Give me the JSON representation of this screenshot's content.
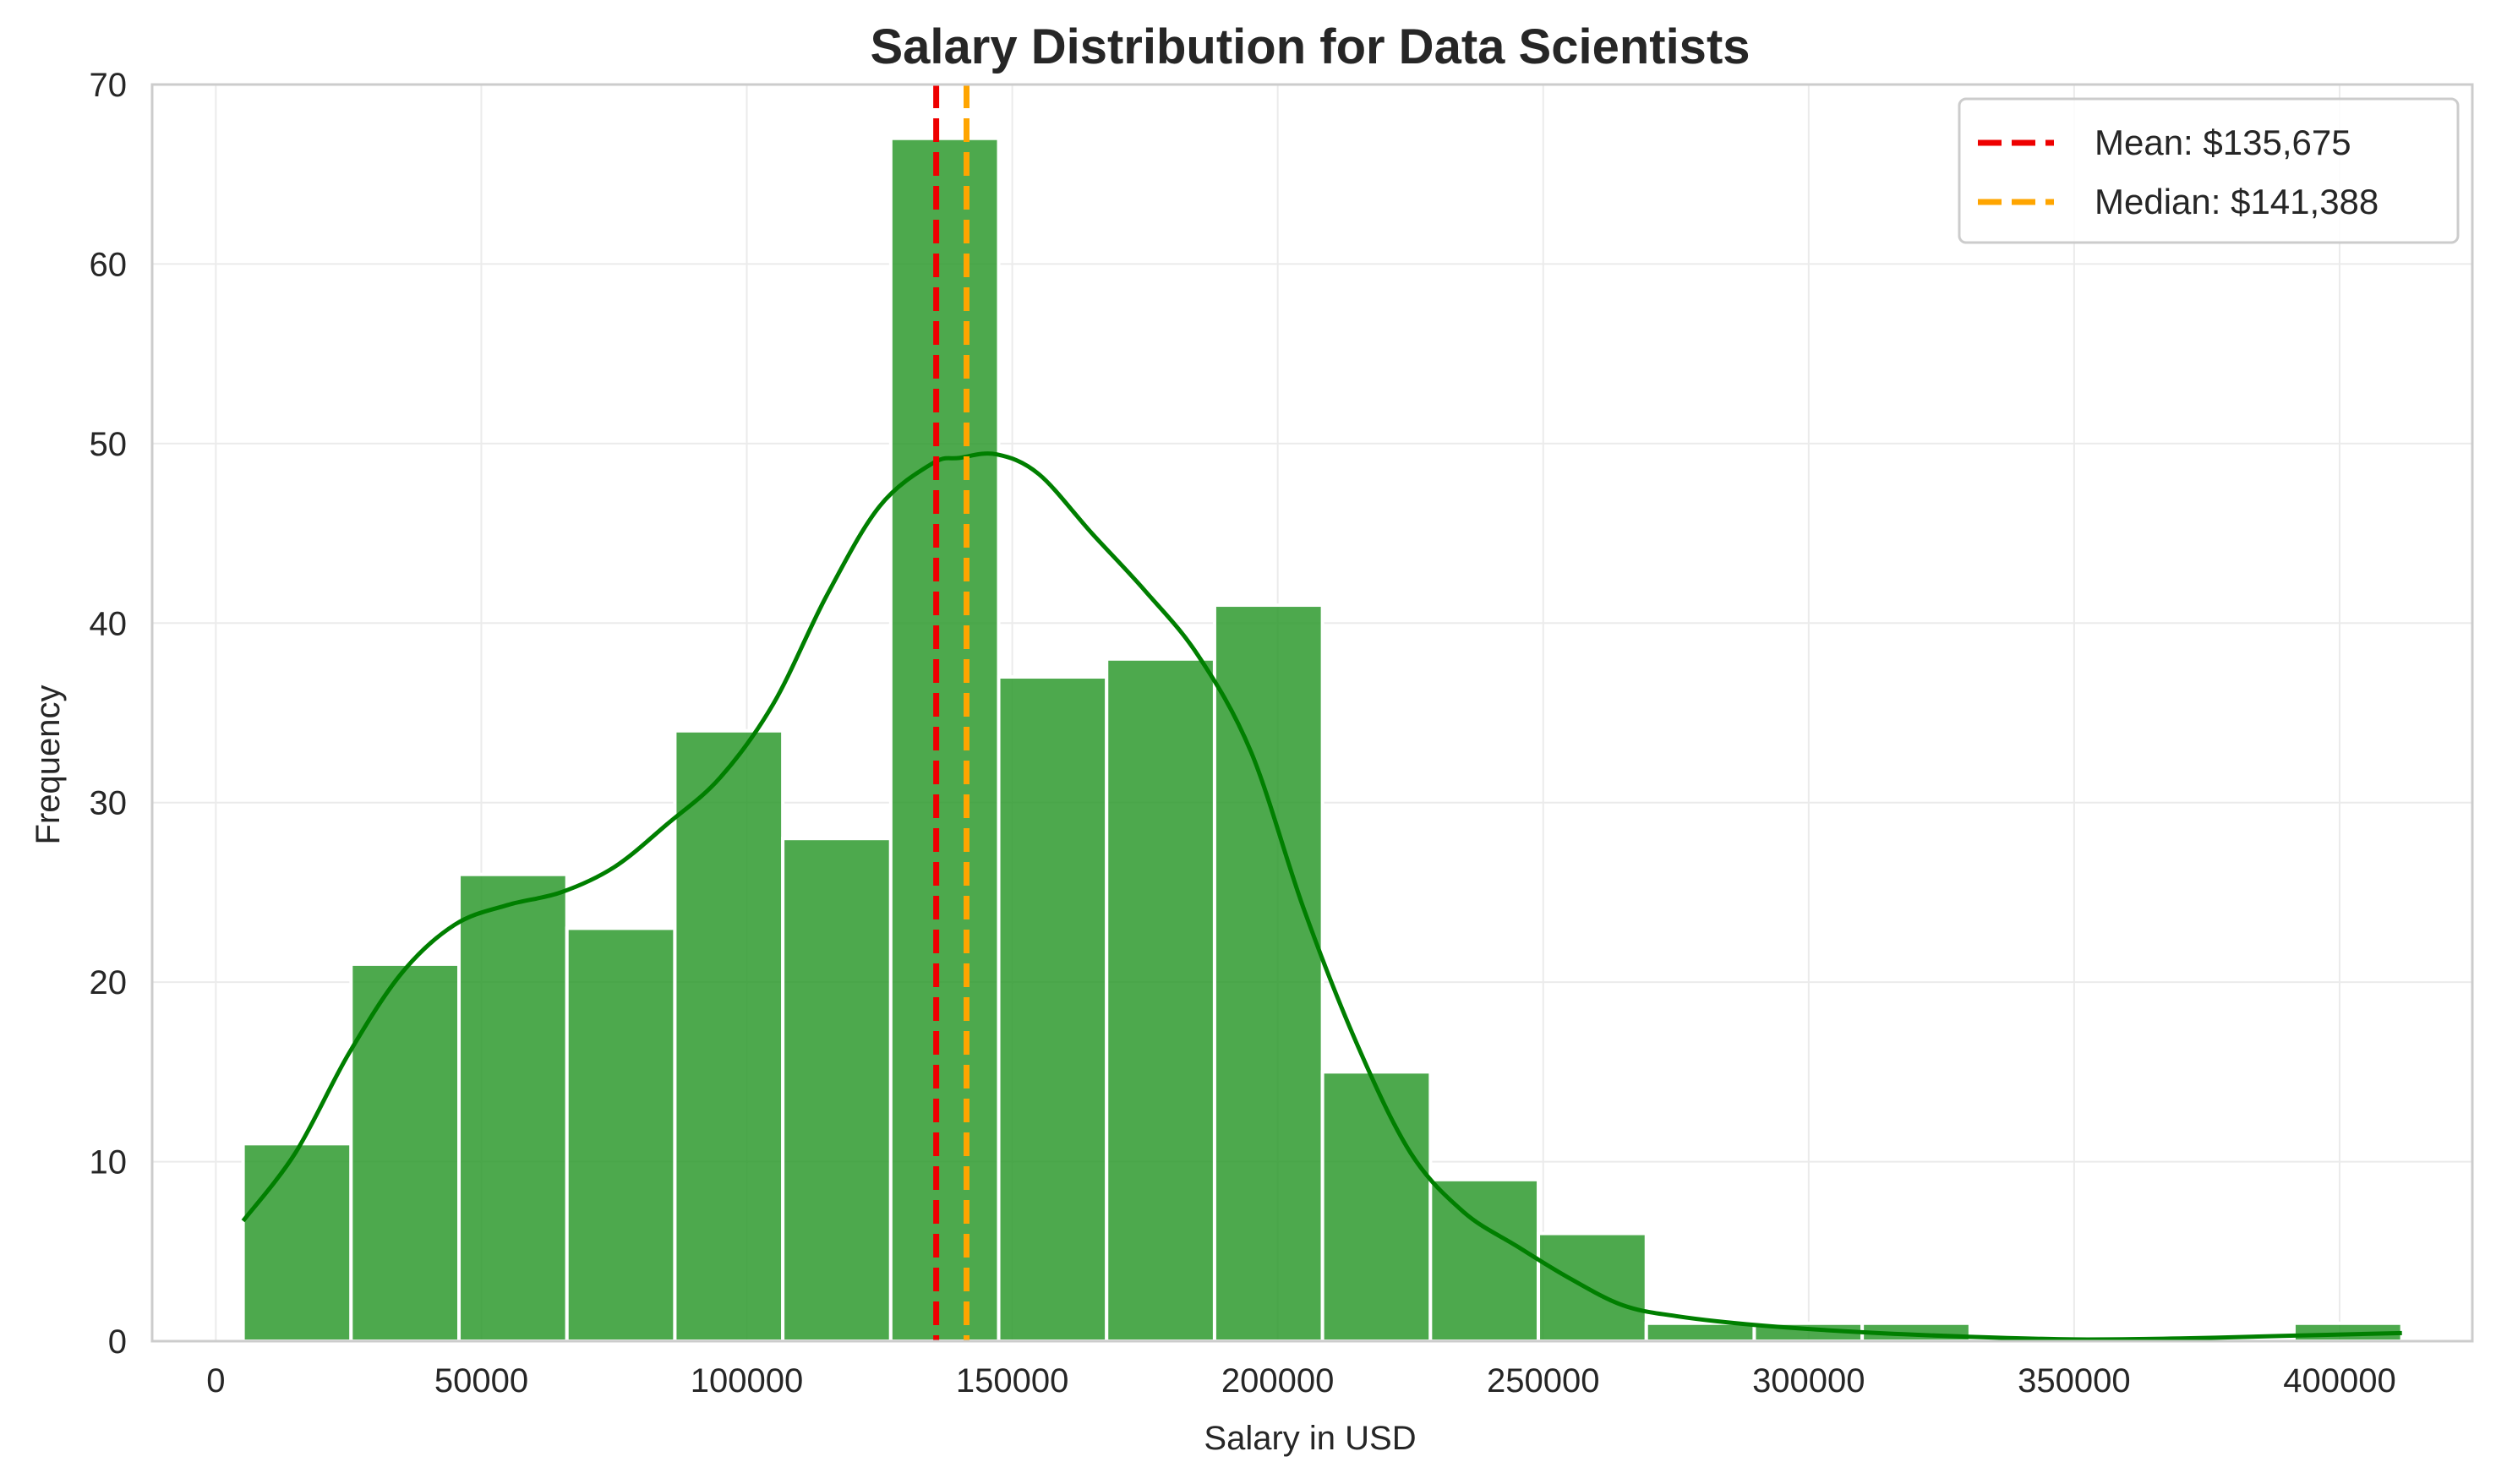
{
  "chart_data": {
    "type": "bar",
    "subtype": "histogram",
    "title": "Salary Distribution for Data Scientists",
    "xlabel": "Salary in USD",
    "ylabel": "Frequency",
    "xlim": [
      -12000,
      425000
    ],
    "ylim": [
      0,
      70
    ],
    "xticks": [
      0,
      50000,
      100000,
      150000,
      200000,
      250000,
      300000,
      350000,
      400000
    ],
    "yticks": [
      0,
      10,
      20,
      30,
      40,
      50,
      60,
      70
    ],
    "grid": true,
    "bar_color": "#2e9a2e",
    "kde_color": "#007f00",
    "bins": [
      {
        "x0": 5132,
        "x1": 25462,
        "count": 11
      },
      {
        "x0": 25462,
        "x1": 45792,
        "count": 21
      },
      {
        "x0": 45792,
        "x1": 66122,
        "count": 26
      },
      {
        "x0": 66122,
        "x1": 86452,
        "count": 23
      },
      {
        "x0": 86452,
        "x1": 106782,
        "count": 34
      },
      {
        "x0": 106782,
        "x1": 127112,
        "count": 28
      },
      {
        "x0": 127112,
        "x1": 147442,
        "count": 67
      },
      {
        "x0": 147442,
        "x1": 167772,
        "count": 37
      },
      {
        "x0": 167772,
        "x1": 188102,
        "count": 38
      },
      {
        "x0": 188102,
        "x1": 208432,
        "count": 41
      },
      {
        "x0": 208432,
        "x1": 228762,
        "count": 15
      },
      {
        "x0": 228762,
        "x1": 249092,
        "count": 9
      },
      {
        "x0": 249092,
        "x1": 269422,
        "count": 6
      },
      {
        "x0": 269422,
        "x1": 289752,
        "count": 1
      },
      {
        "x0": 289752,
        "x1": 310082,
        "count": 1
      },
      {
        "x0": 310082,
        "x1": 330412,
        "count": 1
      },
      {
        "x0": 330412,
        "x1": 350742,
        "count": 0
      },
      {
        "x0": 350742,
        "x1": 371072,
        "count": 0
      },
      {
        "x0": 371072,
        "x1": 391402,
        "count": 0
      },
      {
        "x0": 391402,
        "x1": 411732,
        "count": 1
      }
    ],
    "kde": {
      "x": [
        5132,
        15000,
        25000,
        35000,
        45000,
        55000,
        65000,
        75000,
        85000,
        95000,
        105000,
        115000,
        125000,
        135000,
        140000,
        147000,
        155000,
        165000,
        175000,
        185000,
        195000,
        205000,
        215000,
        225000,
        235000,
        245000,
        255000,
        265000,
        275000,
        290000,
        310000,
        330000,
        350000,
        370000,
        390000,
        411732
      ],
      "y": [
        6.7,
        10.5,
        16.0,
        20.5,
        23.2,
        24.3,
        25.0,
        26.4,
        28.8,
        31.4,
        35.5,
        41.5,
        46.5,
        48.9,
        49.2,
        49.4,
        48.3,
        45.0,
        41.8,
        38.2,
        32.8,
        24.0,
        16.5,
        10.5,
        7.2,
        5.3,
        3.5,
        2.0,
        1.4,
        0.9,
        0.5,
        0.25,
        0.1,
        0.15,
        0.3,
        0.45
      ]
    },
    "reference_lines": [
      {
        "name": "Mean: $135,675",
        "x": 135675,
        "color": "#ee0000",
        "style": "dashed"
      },
      {
        "name": "Median: $141,388",
        "x": 141388,
        "color": "#ffa500",
        "style": "dashed"
      }
    ],
    "legend_position": "top-right"
  }
}
